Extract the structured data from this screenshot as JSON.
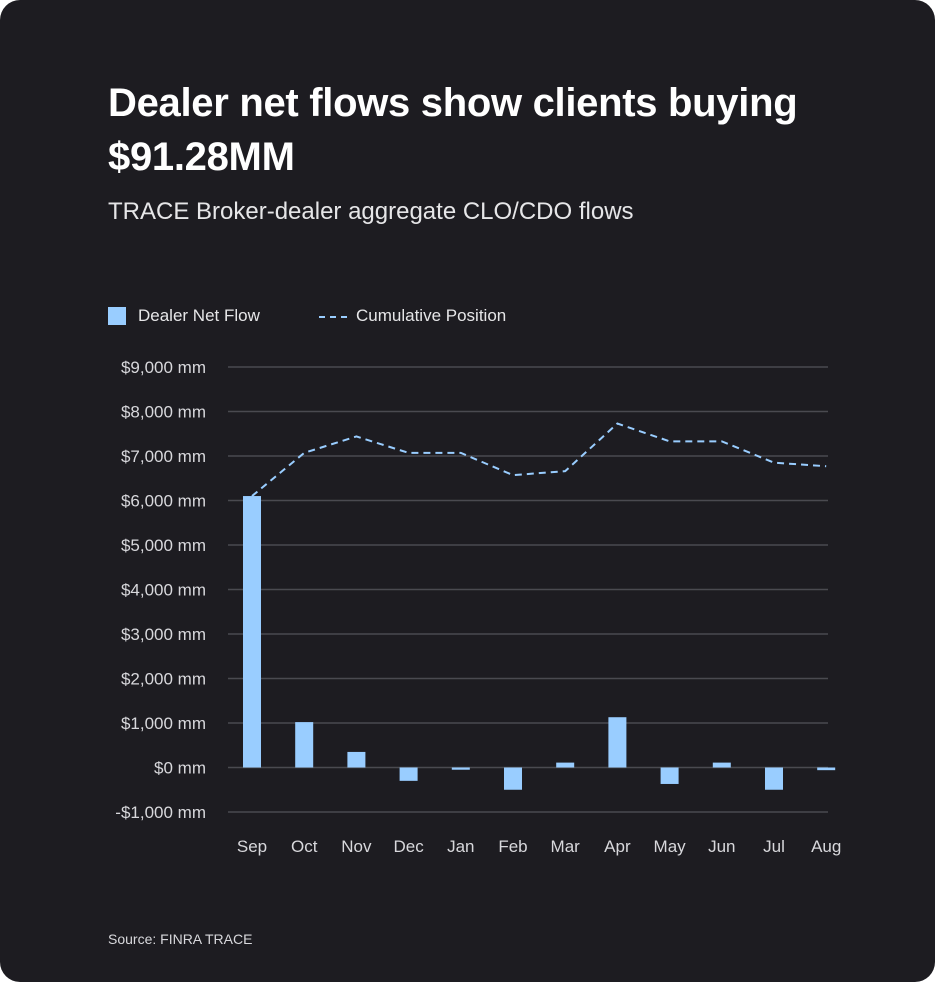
{
  "title": "Dealer net flows show clients buying $91.28MM",
  "subtitle": "TRACE Broker-dealer aggregate CLO/CDO flows",
  "source": "Source: FINRA TRACE",
  "legend": {
    "bar_label": "Dealer Net Flow",
    "line_label": "Cumulative Position"
  },
  "colors": {
    "background": "#1d1c21",
    "bar": "#99cdff",
    "line": "#99cdff",
    "grid": "#4a4a50",
    "tick_text": "#d8d8dc"
  },
  "chart_data": {
    "type": "bar",
    "categories": [
      "Sep",
      "Oct",
      "Nov",
      "Dec",
      "Jan",
      "Feb",
      "Mar",
      "Apr",
      "May",
      "Jun",
      "Jul",
      "Aug"
    ],
    "series": [
      {
        "name": "Dealer Net Flow",
        "type": "bar",
        "values": [
          6100,
          1020,
          350,
          -300,
          -50,
          -500,
          110,
          1130,
          -370,
          110,
          -500,
          -60
        ]
      },
      {
        "name": "Cumulative Position",
        "type": "line",
        "style": "dashed",
        "values": [
          6100,
          7070,
          7440,
          7070,
          7070,
          6570,
          6660,
          7730,
          7330,
          7330,
          6850,
          6770
        ]
      }
    ],
    "y_ticks": [
      {
        "value": 9000,
        "label": "$9,000 mm"
      },
      {
        "value": 8000,
        "label": "$8,000 mm"
      },
      {
        "value": 7000,
        "label": "$7,000 mm"
      },
      {
        "value": 6000,
        "label": "$6,000 mm"
      },
      {
        "value": 5000,
        "label": "$5,000 mm"
      },
      {
        "value": 4000,
        "label": "$4,000 mm"
      },
      {
        "value": 3000,
        "label": "$3,000 mm"
      },
      {
        "value": 2000,
        "label": "$2,000 mm"
      },
      {
        "value": 1000,
        "label": "$1,000 mm"
      },
      {
        "value": 0,
        "label": "$0 mm"
      },
      {
        "value": -1000,
        "label": "-$1,000 mm"
      }
    ],
    "ylim": [
      -1000,
      9000
    ],
    "grid": true,
    "legend_position": "top-left"
  }
}
